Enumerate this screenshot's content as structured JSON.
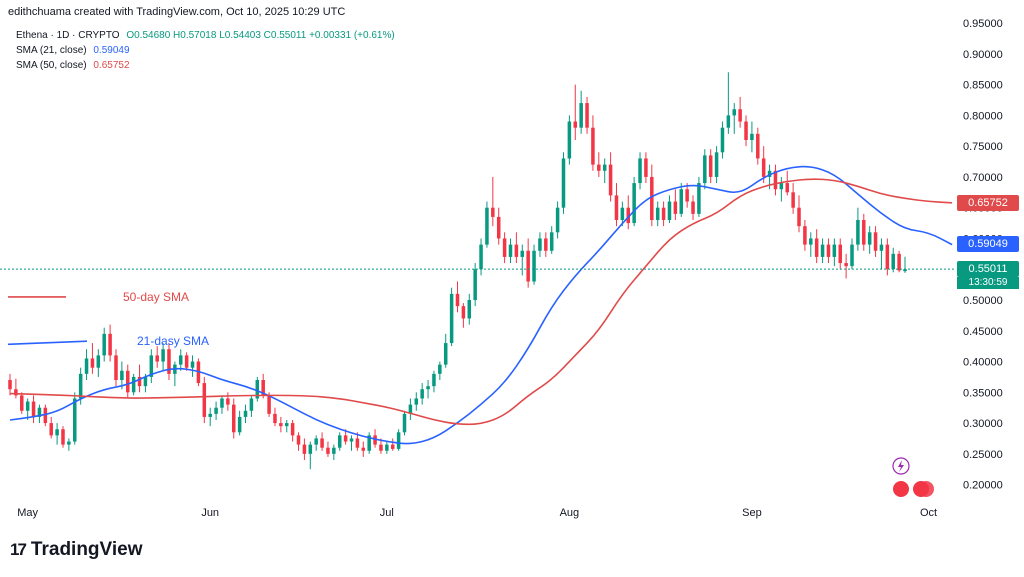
{
  "header": {
    "publisher_line": "edithchuama created with TradingView.com, Oct 10, 2025 10:29 UTC",
    "symbol": "Ethena · 1D · CRYPTO",
    "ohlc": "O0.54680 H0.57018 L0.54403 C0.55011 +0.00331 (+0.61%)",
    "sma21_label": "SMA (21, close)",
    "sma21_value": "0.59049",
    "sma50_label": "SMA (50, close)",
    "sma50_value": "0.65752"
  },
  "brand": {
    "name": "TradingView",
    "mark": "17"
  },
  "price_labels": {
    "sma50": "0.65752",
    "sma21": "0.59049",
    "last": "0.55011",
    "countdown": "13:30:59"
  },
  "colors": {
    "up": "#089981",
    "down": "#f23645",
    "sma21": "#2962ff",
    "sma50": "#e04a4a",
    "last": "#089981"
  },
  "chart_data": {
    "type": "candlestick",
    "title": "Ethena · 1D · CRYPTO",
    "ylim": [
      0.175,
      0.955
    ],
    "y_ticks": [
      "0.95000",
      "0.90000",
      "0.85000",
      "0.80000",
      "0.75000",
      "0.70000",
      "0.65000",
      "0.60000",
      "0.55000",
      "0.50000",
      "0.45000",
      "0.40000",
      "0.35000",
      "0.30000",
      "0.25000",
      "0.20000"
    ],
    "x_ticks": [
      {
        "label": "May",
        "day": 3
      },
      {
        "label": "Jun",
        "day": 34
      },
      {
        "label": "Jul",
        "day": 64
      },
      {
        "label": "Aug",
        "day": 95
      },
      {
        "label": "Sep",
        "day": 126
      },
      {
        "label": "Oct",
        "day": 156
      }
    ],
    "annotations": [
      {
        "text": "50-day SMA",
        "series": "SMA 50"
      },
      {
        "text": "21-dasy SMA",
        "series": "SMA 21"
      }
    ],
    "candles_ohlc": [
      [
        0.37,
        0.38,
        0.345,
        0.355
      ],
      [
        0.355,
        0.372,
        0.34,
        0.345
      ],
      [
        0.345,
        0.35,
        0.315,
        0.32
      ],
      [
        0.32,
        0.34,
        0.305,
        0.335
      ],
      [
        0.335,
        0.345,
        0.3,
        0.31
      ],
      [
        0.31,
        0.33,
        0.3,
        0.325
      ],
      [
        0.325,
        0.33,
        0.295,
        0.3
      ],
      [
        0.3,
        0.31,
        0.275,
        0.28
      ],
      [
        0.28,
        0.3,
        0.265,
        0.29
      ],
      [
        0.29,
        0.295,
        0.26,
        0.265
      ],
      [
        0.265,
        0.275,
        0.255,
        0.27
      ],
      [
        0.27,
        0.35,
        0.265,
        0.34
      ],
      [
        0.34,
        0.39,
        0.33,
        0.38
      ],
      [
        0.38,
        0.42,
        0.37,
        0.405
      ],
      [
        0.405,
        0.43,
        0.38,
        0.39
      ],
      [
        0.39,
        0.42,
        0.375,
        0.41
      ],
      [
        0.41,
        0.455,
        0.4,
        0.445
      ],
      [
        0.445,
        0.46,
        0.4,
        0.41
      ],
      [
        0.41,
        0.42,
        0.36,
        0.37
      ],
      [
        0.37,
        0.4,
        0.355,
        0.385
      ],
      [
        0.385,
        0.395,
        0.34,
        0.35
      ],
      [
        0.35,
        0.38,
        0.345,
        0.375
      ],
      [
        0.375,
        0.395,
        0.35,
        0.36
      ],
      [
        0.36,
        0.38,
        0.35,
        0.375
      ],
      [
        0.375,
        0.42,
        0.365,
        0.41
      ],
      [
        0.41,
        0.425,
        0.39,
        0.4
      ],
      [
        0.4,
        0.43,
        0.385,
        0.42
      ],
      [
        0.42,
        0.43,
        0.37,
        0.38
      ],
      [
        0.38,
        0.4,
        0.36,
        0.395
      ],
      [
        0.395,
        0.42,
        0.385,
        0.41
      ],
      [
        0.41,
        0.415,
        0.385,
        0.39
      ],
      [
        0.39,
        0.41,
        0.375,
        0.4
      ],
      [
        0.4,
        0.405,
        0.36,
        0.365
      ],
      [
        0.365,
        0.375,
        0.3,
        0.31
      ],
      [
        0.31,
        0.325,
        0.295,
        0.315
      ],
      [
        0.315,
        0.335,
        0.305,
        0.325
      ],
      [
        0.325,
        0.345,
        0.315,
        0.34
      ],
      [
        0.34,
        0.35,
        0.32,
        0.33
      ],
      [
        0.33,
        0.34,
        0.275,
        0.285
      ],
      [
        0.285,
        0.32,
        0.28,
        0.31
      ],
      [
        0.31,
        0.33,
        0.3,
        0.32
      ],
      [
        0.32,
        0.345,
        0.31,
        0.34
      ],
      [
        0.34,
        0.375,
        0.335,
        0.37
      ],
      [
        0.37,
        0.38,
        0.34,
        0.345
      ],
      [
        0.345,
        0.35,
        0.31,
        0.315
      ],
      [
        0.315,
        0.325,
        0.295,
        0.3
      ],
      [
        0.3,
        0.31,
        0.285,
        0.295
      ],
      [
        0.295,
        0.305,
        0.285,
        0.3
      ],
      [
        0.3,
        0.305,
        0.27,
        0.28
      ],
      [
        0.28,
        0.285,
        0.255,
        0.265
      ],
      [
        0.265,
        0.275,
        0.24,
        0.25
      ],
      [
        0.25,
        0.27,
        0.225,
        0.265
      ],
      [
        0.265,
        0.28,
        0.255,
        0.275
      ],
      [
        0.275,
        0.285,
        0.255,
        0.26
      ],
      [
        0.26,
        0.27,
        0.245,
        0.25
      ],
      [
        0.25,
        0.265,
        0.24,
        0.26
      ],
      [
        0.26,
        0.285,
        0.255,
        0.28
      ],
      [
        0.28,
        0.29,
        0.265,
        0.27
      ],
      [
        0.27,
        0.28,
        0.255,
        0.275
      ],
      [
        0.275,
        0.285,
        0.255,
        0.26
      ],
      [
        0.26,
        0.27,
        0.245,
        0.255
      ],
      [
        0.255,
        0.285,
        0.25,
        0.28
      ],
      [
        0.28,
        0.29,
        0.26,
        0.265
      ],
      [
        0.265,
        0.275,
        0.25,
        0.255
      ],
      [
        0.255,
        0.27,
        0.25,
        0.265
      ],
      [
        0.265,
        0.275,
        0.255,
        0.258
      ],
      [
        0.258,
        0.29,
        0.255,
        0.285
      ],
      [
        0.285,
        0.32,
        0.28,
        0.315
      ],
      [
        0.315,
        0.34,
        0.305,
        0.33
      ],
      [
        0.33,
        0.35,
        0.32,
        0.34
      ],
      [
        0.34,
        0.365,
        0.33,
        0.355
      ],
      [
        0.355,
        0.37,
        0.34,
        0.36
      ],
      [
        0.36,
        0.385,
        0.35,
        0.38
      ],
      [
        0.38,
        0.4,
        0.37,
        0.395
      ],
      [
        0.395,
        0.445,
        0.39,
        0.43
      ],
      [
        0.43,
        0.52,
        0.425,
        0.51
      ],
      [
        0.51,
        0.53,
        0.48,
        0.49
      ],
      [
        0.49,
        0.495,
        0.455,
        0.47
      ],
      [
        0.47,
        0.51,
        0.46,
        0.5
      ],
      [
        0.5,
        0.56,
        0.49,
        0.55
      ],
      [
        0.55,
        0.6,
        0.54,
        0.59
      ],
      [
        0.59,
        0.66,
        0.585,
        0.65
      ],
      [
        0.65,
        0.7,
        0.62,
        0.635
      ],
      [
        0.635,
        0.65,
        0.59,
        0.6
      ],
      [
        0.6,
        0.61,
        0.56,
        0.57
      ],
      [
        0.57,
        0.6,
        0.56,
        0.59
      ],
      [
        0.59,
        0.61,
        0.56,
        0.57
      ],
      [
        0.57,
        0.59,
        0.54,
        0.58
      ],
      [
        0.58,
        0.6,
        0.52,
        0.53
      ],
      [
        0.53,
        0.59,
        0.525,
        0.58
      ],
      [
        0.58,
        0.61,
        0.57,
        0.6
      ],
      [
        0.6,
        0.61,
        0.57,
        0.58
      ],
      [
        0.58,
        0.62,
        0.575,
        0.61
      ],
      [
        0.61,
        0.66,
        0.6,
        0.65
      ],
      [
        0.65,
        0.74,
        0.64,
        0.73
      ],
      [
        0.73,
        0.8,
        0.72,
        0.79
      ],
      [
        0.79,
        0.85,
        0.76,
        0.78
      ],
      [
        0.78,
        0.84,
        0.77,
        0.82
      ],
      [
        0.82,
        0.83,
        0.77,
        0.78
      ],
      [
        0.78,
        0.8,
        0.71,
        0.72
      ],
      [
        0.72,
        0.74,
        0.7,
        0.71
      ],
      [
        0.71,
        0.73,
        0.69,
        0.72
      ],
      [
        0.72,
        0.74,
        0.66,
        0.67
      ],
      [
        0.67,
        0.69,
        0.62,
        0.63
      ],
      [
        0.63,
        0.66,
        0.62,
        0.65
      ],
      [
        0.65,
        0.67,
        0.615,
        0.625
      ],
      [
        0.625,
        0.7,
        0.62,
        0.69
      ],
      [
        0.69,
        0.74,
        0.68,
        0.73
      ],
      [
        0.73,
        0.74,
        0.69,
        0.7
      ],
      [
        0.7,
        0.72,
        0.62,
        0.63
      ],
      [
        0.63,
        0.66,
        0.62,
        0.65
      ],
      [
        0.65,
        0.66,
        0.62,
        0.63
      ],
      [
        0.63,
        0.67,
        0.625,
        0.66
      ],
      [
        0.66,
        0.68,
        0.63,
        0.64
      ],
      [
        0.64,
        0.69,
        0.635,
        0.68
      ],
      [
        0.68,
        0.69,
        0.65,
        0.66
      ],
      [
        0.66,
        0.67,
        0.63,
        0.64
      ],
      [
        0.64,
        0.7,
        0.635,
        0.69
      ],
      [
        0.69,
        0.745,
        0.68,
        0.735
      ],
      [
        0.735,
        0.745,
        0.69,
        0.7
      ],
      [
        0.7,
        0.75,
        0.69,
        0.74
      ],
      [
        0.74,
        0.79,
        0.73,
        0.78
      ],
      [
        0.78,
        0.87,
        0.77,
        0.8
      ],
      [
        0.8,
        0.82,
        0.77,
        0.81
      ],
      [
        0.81,
        0.83,
        0.78,
        0.79
      ],
      [
        0.79,
        0.8,
        0.75,
        0.76
      ],
      [
        0.76,
        0.79,
        0.74,
        0.77
      ],
      [
        0.77,
        0.78,
        0.72,
        0.73
      ],
      [
        0.73,
        0.75,
        0.69,
        0.7
      ],
      [
        0.7,
        0.72,
        0.68,
        0.71
      ],
      [
        0.71,
        0.72,
        0.67,
        0.68
      ],
      [
        0.68,
        0.7,
        0.66,
        0.69
      ],
      [
        0.69,
        0.71,
        0.67,
        0.675
      ],
      [
        0.675,
        0.69,
        0.64,
        0.65
      ],
      [
        0.65,
        0.67,
        0.61,
        0.62
      ],
      [
        0.62,
        0.63,
        0.58,
        0.59
      ],
      [
        0.59,
        0.61,
        0.57,
        0.6
      ],
      [
        0.6,
        0.615,
        0.56,
        0.57
      ],
      [
        0.57,
        0.6,
        0.56,
        0.59
      ],
      [
        0.59,
        0.6,
        0.56,
        0.57
      ],
      [
        0.57,
        0.6,
        0.555,
        0.59
      ],
      [
        0.59,
        0.6,
        0.55,
        0.56
      ],
      [
        0.56,
        0.575,
        0.535,
        0.555
      ],
      [
        0.555,
        0.6,
        0.55,
        0.59
      ],
      [
        0.59,
        0.65,
        0.58,
        0.63
      ],
      [
        0.63,
        0.64,
        0.58,
        0.59
      ],
      [
        0.59,
        0.62,
        0.575,
        0.61
      ],
      [
        0.61,
        0.62,
        0.57,
        0.58
      ],
      [
        0.58,
        0.6,
        0.55,
        0.59
      ],
      [
        0.59,
        0.6,
        0.54,
        0.55
      ],
      [
        0.55,
        0.585,
        0.545,
        0.575
      ],
      [
        0.575,
        0.58,
        0.545,
        0.548
      ],
      [
        0.5468,
        0.57018,
        0.54403,
        0.55011
      ]
    ],
    "series": [
      {
        "name": "SMA 21",
        "values": [
          [
            0,
            0.305
          ],
          [
            4,
            0.31
          ],
          [
            8,
            0.318
          ],
          [
            12,
            0.34
          ],
          [
            16,
            0.355
          ],
          [
            20,
            0.362
          ],
          [
            24,
            0.38
          ],
          [
            28,
            0.39
          ],
          [
            32,
            0.385
          ],
          [
            36,
            0.37
          ],
          [
            40,
            0.36
          ],
          [
            44,
            0.345
          ],
          [
            48,
            0.325
          ],
          [
            52,
            0.305
          ],
          [
            56,
            0.29
          ],
          [
            60,
            0.278
          ],
          [
            64,
            0.27
          ],
          [
            68,
            0.265
          ],
          [
            72,
            0.275
          ],
          [
            76,
            0.3
          ],
          [
            80,
            0.33
          ],
          [
            84,
            0.365
          ],
          [
            88,
            0.42
          ],
          [
            92,
            0.49
          ],
          [
            96,
            0.54
          ],
          [
            100,
            0.58
          ],
          [
            104,
            0.625
          ],
          [
            108,
            0.665
          ],
          [
            112,
            0.68
          ],
          [
            116,
            0.688
          ],
          [
            120,
            0.68
          ],
          [
            124,
            0.672
          ],
          [
            128,
            0.7
          ],
          [
            132,
            0.715
          ],
          [
            136,
            0.718
          ],
          [
            140,
            0.705
          ],
          [
            144,
            0.672
          ],
          [
            148,
            0.64
          ],
          [
            152,
            0.615
          ],
          [
            156,
            0.61
          ],
          [
            160,
            0.59
          ]
        ]
      },
      {
        "name": "SMA 50",
        "values": [
          [
            0,
            0.348
          ],
          [
            10,
            0.345
          ],
          [
            20,
            0.34
          ],
          [
            30,
            0.342
          ],
          [
            40,
            0.345
          ],
          [
            50,
            0.345
          ],
          [
            56,
            0.34
          ],
          [
            60,
            0.333
          ],
          [
            64,
            0.326
          ],
          [
            68,
            0.316
          ],
          [
            72,
            0.305
          ],
          [
            76,
            0.298
          ],
          [
            80,
            0.298
          ],
          [
            84,
            0.312
          ],
          [
            88,
            0.345
          ],
          [
            92,
            0.37
          ],
          [
            96,
            0.41
          ],
          [
            100,
            0.45
          ],
          [
            104,
            0.51
          ],
          [
            108,
            0.555
          ],
          [
            112,
            0.6
          ],
          [
            116,
            0.625
          ],
          [
            120,
            0.64
          ],
          [
            124,
            0.67
          ],
          [
            128,
            0.685
          ],
          [
            132,
            0.693
          ],
          [
            136,
            0.697
          ],
          [
            140,
            0.695
          ],
          [
            144,
            0.685
          ],
          [
            148,
            0.672
          ],
          [
            152,
            0.665
          ],
          [
            156,
            0.66
          ],
          [
            160,
            0.658
          ]
        ]
      }
    ]
  }
}
